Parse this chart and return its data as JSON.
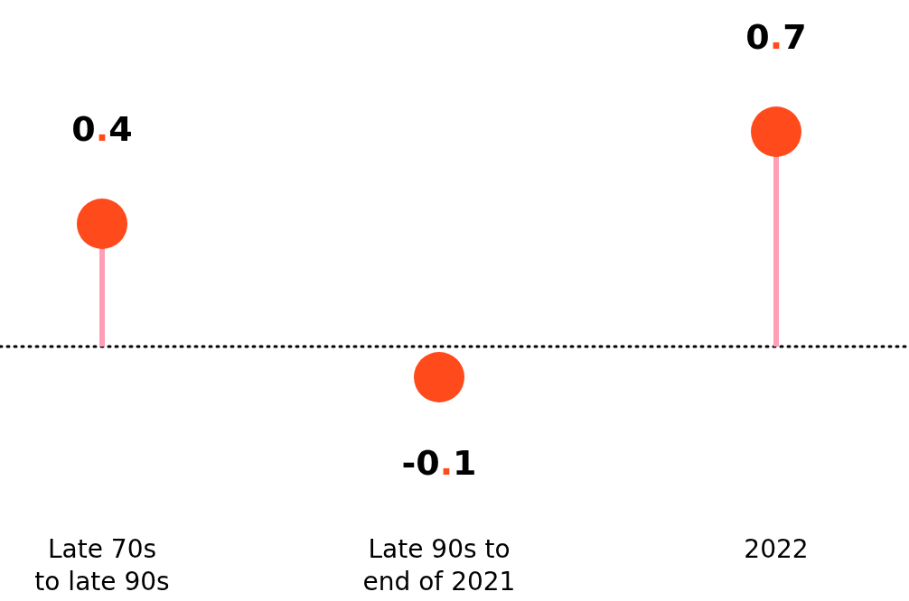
{
  "chart_data": {
    "type": "lollipop",
    "categories": [
      "Late 70s to late 90s",
      "Late 90s to end of 2021",
      "2022"
    ],
    "values": [
      0.4,
      -0.1,
      0.7
    ],
    "color": "#ff4a1c",
    "data_labels": true,
    "marker": "circle",
    "ref_lines": [
      {
        "axis": "y",
        "value": 0,
        "line_style": "dotted",
        "color": "#000000"
      }
    ]
  }
}
